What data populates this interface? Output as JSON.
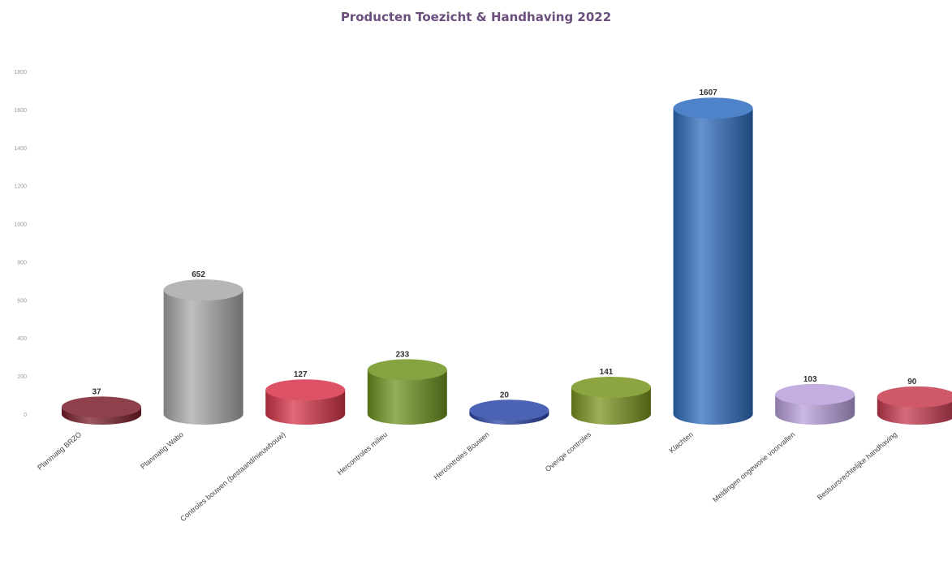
{
  "chart_data": {
    "type": "bar",
    "title": "Producten Toezicht & Handhaving 2022",
    "xlabel": "",
    "ylabel": "",
    "ylim": [
      0,
      1800
    ],
    "yticks": [
      "0",
      "200",
      "400",
      "600",
      "800",
      "1000",
      "1200",
      "1400",
      "1600",
      "1800"
    ],
    "grid": false,
    "legend": "none",
    "categories": [
      "Planmatig BRZO",
      "Planmatig Wabo",
      "Controles bouwen (bestaand/nieuwbouw)",
      "Hercontroles milieu",
      "Hercontroles Bouwen",
      "Overige controles",
      "Klachten",
      "Meldingen ongewone voorvallen",
      "Bestuursrechtelijke handhaving"
    ],
    "values": [
      37,
      652,
      127,
      233,
      20,
      141,
      1607,
      103,
      90
    ],
    "data_labels": [
      "37",
      "652",
      "127",
      "233",
      "20",
      "141",
      "1607",
      "103",
      "90"
    ],
    "colors": [
      "#7b1f2b",
      "#a9a9a9",
      "#d8344a",
      "#6f9420",
      "#2c47a8",
      "#79951f",
      "#2f6dbf",
      "#b9a0dc",
      "#c73a4f"
    ]
  }
}
